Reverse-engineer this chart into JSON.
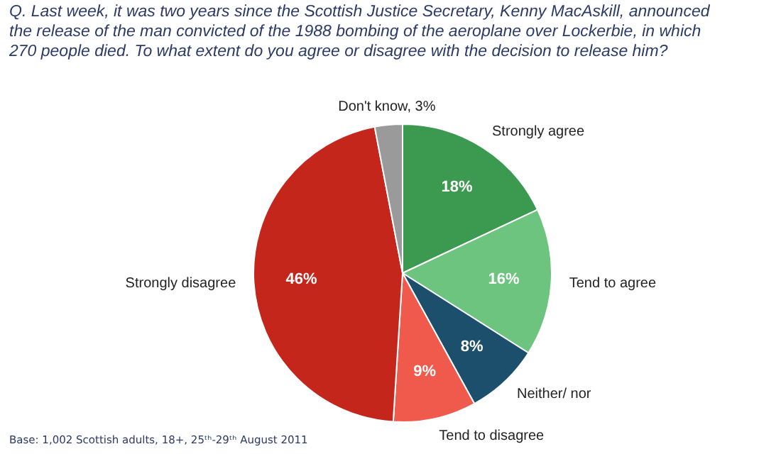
{
  "chart_data": {
    "type": "pie",
    "title": "Q. Last week, it was two years since the Scottish Justice Secretary, Kenny MacAskill, announced the release of the man convicted of the 1988 bombing of the aeroplane over Lockerbie, in which 270 people died. To what extent do you agree or disagree with the decision to release him?",
    "categories": [
      "Strongly agree",
      "Tend to agree",
      "Neither/ nor",
      "Tend to disagree",
      "Strongly disagree",
      "Don't know, 3%"
    ],
    "values": [
      18,
      16,
      8,
      9,
      46,
      3
    ],
    "colors": [
      "#3c9a50",
      "#6cc47e",
      "#1c4f6b",
      "#ef5a4c",
      "#c4261c",
      "#9a9a9a"
    ],
    "value_labels": [
      "18%",
      "16%",
      "8%",
      "9%",
      "46%",
      null
    ],
    "annotations": [
      "Base: 1,002 Scottish adults, 18+, 25ᵗʰ-29ᵗʰ August 2011"
    ]
  }
}
